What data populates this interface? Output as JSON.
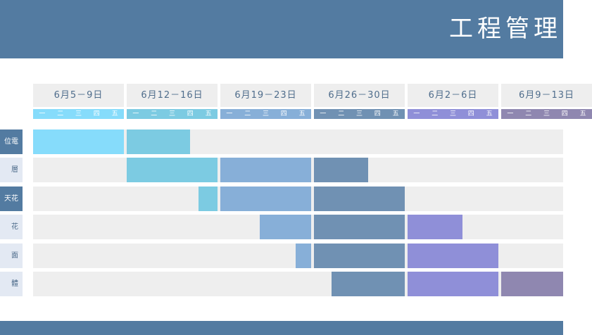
{
  "header": {
    "title": "工程管理"
  },
  "weeks": [
    {
      "label": "6月5－9日",
      "color": "#86dcfb"
    },
    {
      "label": "6月12－16日",
      "color": "#7ccbe2"
    },
    {
      "label": "6月19－23日",
      "color": "#87afd8"
    },
    {
      "label": "6月26－30日",
      "color": "#7091b3"
    },
    {
      "label": "6月2－6日",
      "color": "#8f8fd8"
    },
    {
      "label": "6月9－13日",
      "color": "#8f87b0"
    }
  ],
  "day_labels": [
    "一",
    "二",
    "三",
    "四",
    "五"
  ],
  "rows": [
    {
      "label": "位電"
    },
    {
      "label": "層"
    },
    {
      "label": "天花"
    },
    {
      "label": "花"
    },
    {
      "label": "面"
    },
    {
      "label": "體"
    }
  ]
}
